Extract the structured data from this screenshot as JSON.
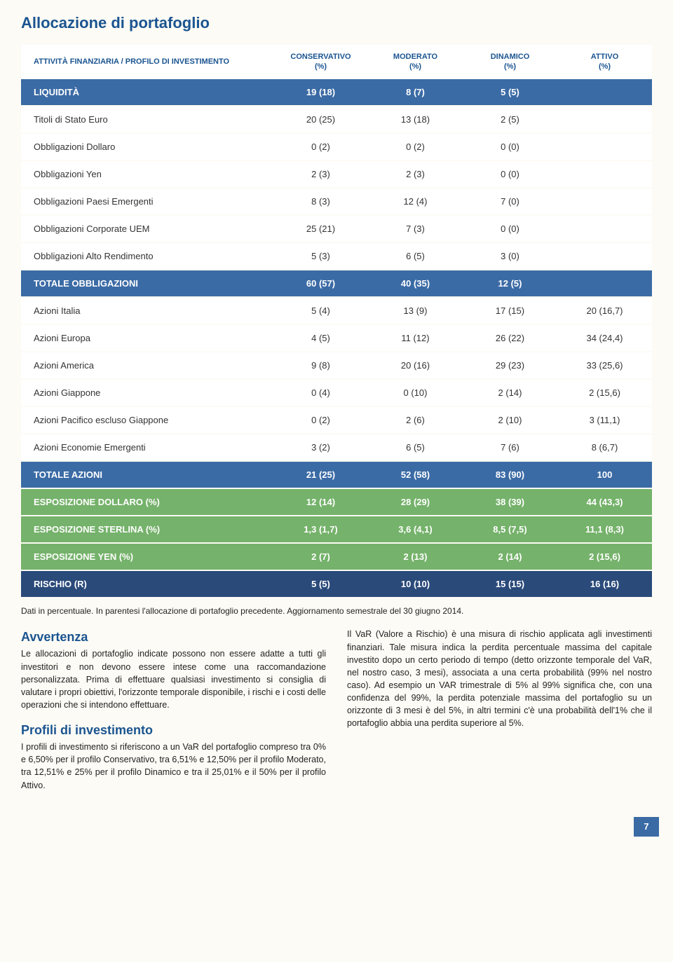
{
  "title": "Allocazione di portafoglio",
  "headers": {
    "label": "ATTIVITÀ FINANZIARIA / PROFILO DI INVESTIMENTO",
    "c1": "CONSERVATIVO",
    "c1u": "(%)",
    "c2": "MODERATO",
    "c2u": "(%)",
    "c3": "DINAMICO",
    "c3u": "(%)",
    "c4": "ATTIVO",
    "c4u": "(%)"
  },
  "rows": [
    {
      "type": "blue",
      "label": "LIQUIDITÀ",
      "v": [
        "19 (18)",
        "8 (7)",
        "5 (5)",
        ""
      ]
    },
    {
      "type": "white",
      "label": "Titoli di Stato Euro",
      "v": [
        "20 (25)",
        "13 (18)",
        "2 (5)",
        ""
      ]
    },
    {
      "type": "white",
      "label": "Obbligazioni Dollaro",
      "v": [
        "0 (2)",
        "0 (2)",
        "0 (0)",
        ""
      ]
    },
    {
      "type": "white",
      "label": "Obbligazioni Yen",
      "v": [
        "2 (3)",
        "2 (3)",
        "0 (0)",
        ""
      ]
    },
    {
      "type": "white",
      "label": "Obbligazioni Paesi Emergenti",
      "v": [
        "8 (3)",
        "12 (4)",
        "7 (0)",
        ""
      ]
    },
    {
      "type": "white",
      "label": "Obbligazioni Corporate UEM",
      "v": [
        "25 (21)",
        "7 (3)",
        "0 (0)",
        ""
      ]
    },
    {
      "type": "white",
      "label": "Obbligazioni Alto Rendimento",
      "v": [
        "5 (3)",
        "6 (5)",
        "3 (0)",
        ""
      ]
    },
    {
      "type": "blue",
      "label": "TOTALE OBBLIGAZIONI",
      "v": [
        "60 (57)",
        "40 (35)",
        "12 (5)",
        ""
      ]
    },
    {
      "type": "white",
      "label": "Azioni Italia",
      "v": [
        "5 (4)",
        "13 (9)",
        "17 (15)",
        "20 (16,7)"
      ]
    },
    {
      "type": "white",
      "label": "Azioni Europa",
      "v": [
        "4 (5)",
        "11 (12)",
        "26 (22)",
        "34 (24,4)"
      ]
    },
    {
      "type": "white",
      "label": "Azioni America",
      "v": [
        "9 (8)",
        "20 (16)",
        "29 (23)",
        "33 (25,6)"
      ]
    },
    {
      "type": "white",
      "label": "Azioni Giappone",
      "v": [
        "0 (4)",
        "0 (10)",
        "2 (14)",
        "2 (15,6)"
      ]
    },
    {
      "type": "white",
      "label": "Azioni Pacifico escluso Giappone",
      "v": [
        "0 (2)",
        "2 (6)",
        "2 (10)",
        "3 (11,1)"
      ]
    },
    {
      "type": "white",
      "label": "Azioni Economie Emergenti",
      "v": [
        "3 (2)",
        "6 (5)",
        "7 (6)",
        "8 (6,7)"
      ]
    },
    {
      "type": "blue",
      "label": "TOTALE AZIONI",
      "v": [
        "21 (25)",
        "52 (58)",
        "83 (90)",
        "100"
      ]
    },
    {
      "type": "green",
      "label": "ESPOSIZIONE DOLLARO (%)",
      "v": [
        "12 (14)",
        "28 (29)",
        "38 (39)",
        "44 (43,3)"
      ]
    },
    {
      "type": "green",
      "label": "ESPOSIZIONE STERLINA (%)",
      "v": [
        "1,3 (1,7)",
        "3,6 (4,1)",
        "8,5 (7,5)",
        "11,1 (8,3)"
      ]
    },
    {
      "type": "green",
      "label": "ESPOSIZIONE YEN (%)",
      "v": [
        "2 (7)",
        "2 (13)",
        "2 (14)",
        "2 (15,6)"
      ]
    },
    {
      "type": "darkblue",
      "label": "RISCHIO (R)",
      "v": [
        "5 (5)",
        "10 (10)",
        "15 (15)",
        "16 (16)"
      ]
    }
  ],
  "footnote": "Dati in percentuale. In parentesi l'allocazione di portafoglio precedente. Aggiornamento semestrale del 30 giugno 2014.",
  "left": {
    "h1": "Avvertenza",
    "p1": "Le allocazioni di portafoglio indicate possono non essere adatte a tutti gli investitori e non devono essere intese come una raccomandazione personalizzata. Prima di effettuare qualsiasi investimento si consiglia di valutare i propri obiettivi, l'orizzonte temporale disponibile, i rischi e i costi delle operazioni che si intendono effettuare.",
    "h2": "Profili di investimento",
    "p2": "I profili di investimento si riferiscono a un VaR del portafoglio compreso tra 0% e 6,50% per il profilo Conservativo, tra 6,51% e 12,50% per il profilo Moderato, tra 12,51% e 25% per il profilo Dinamico e tra il 25,01% e il 50% per il profilo Attivo."
  },
  "right": {
    "p1": "Il VaR (Valore a Rischio) è una misura di rischio applicata agli investimenti finanziari. Tale misura indica la perdita percentuale massima del capitale investito dopo un certo periodo di tempo (detto orizzonte temporale del VaR, nel nostro caso, 3 mesi), associata a una certa probabilità (99% nel nostro caso). Ad esempio un VAR trimestrale di 5% al 99% significa che, con una confidenza del 99%, la perdita potenziale massima del portafoglio su un orizzonte di 3 mesi è del 5%, in altri termini c'è una probabilità dell'1% che il portafoglio abbia una perdita superiore al 5%."
  },
  "pagenum": "7",
  "colors": {
    "blue_row": "#3b6ba5",
    "green_row": "#75b26b",
    "darkblue_row": "#2a4a7a",
    "heading": "#1a5490",
    "page_bg": "#fdfbf5"
  },
  "col_widths": [
    "40%",
    "15%",
    "15%",
    "15%",
    "15%"
  ]
}
